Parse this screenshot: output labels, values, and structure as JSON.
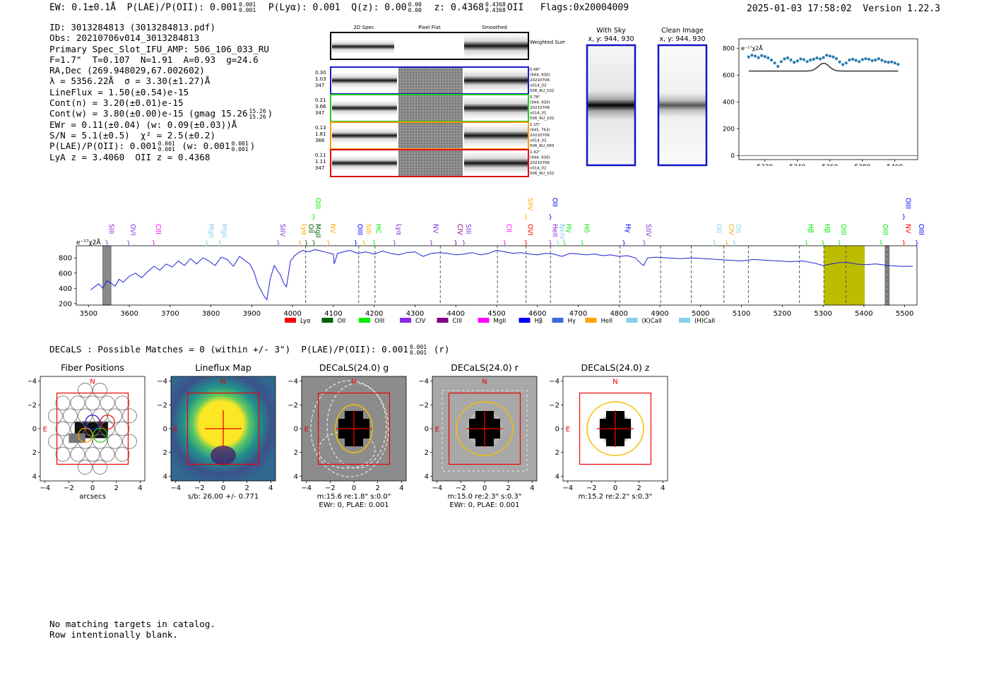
{
  "header": {
    "ew": "EW: 0.1±0.1Å",
    "plae_label": "P(LAE)/P(OII): 0.001",
    "plae_hi": "0.001",
    "plae_lo": "0.001",
    "plya": "P(Lyα): 0.001",
    "qz_label": "Q(z): 0.00",
    "qz_hi": "0.00",
    "qz_lo": "0.00",
    "z_label": "z: 0.4368",
    "z_hi": "0.4368",
    "z_lo": "0.4368",
    "z_line": "OII",
    "flags": "Flags:0x20004009",
    "datetime": "2025-01-03 17:58:02",
    "version": "Version 1.22.3"
  },
  "info": {
    "id": "ID: 3013284813 (3013284813.pdf)",
    "obs": "Obs: 20210706v014_3013284813",
    "slot": "Primary Spec_Slot_IFU_AMP: 506_106_033_RU",
    "fit": "F=1.7\"  T=0.107  N=1.91  A=0.93  g=24.6",
    "radec": "RA,Dec (269.948029,67.002602)",
    "lambda": "λ = 5356.22Å  σ = 3.30(±1.27)Å",
    "lineflux": "LineFlux = 1.50(±0.54)e-15",
    "contn": "Cont(n) = 3.20(±0.01)e-15",
    "contw": "Cont(w) = 3.80(±0.00)e-15 (gmag 15.26",
    "gmag_hi": "15.26",
    "gmag_lo": "15.26",
    "ewr": "EWr = 0.11(±0.04) (w: 0.09(±0.03))Å",
    "sn": "S/N = 5.1(±0.5)  χ² = 2.5(±0.2)",
    "plae": "P(LAE)/P(OII): 0.001",
    "plae_hi": "0.001",
    "plae_lo": "0.001",
    "plae_w": "(w: 0.001",
    "plae_w_hi": "0.001",
    "plae_w_lo": "0.001",
    "lya_z": "LyA z = 3.4060  OII z = 0.4368"
  },
  "cutouts": {
    "col_headers": [
      "2D Spec",
      "Pixel Flat",
      "Smoothed"
    ],
    "weighted_sum": "Weighted Sum",
    "fibers": [
      {
        "color": "#1a1acc",
        "l1": "0.30",
        "l2": "1.03",
        "l3": "347",
        "meta": [
          "0.68\"",
          "(944, 930)",
          "20210706",
          "v014_03",
          "506_RU_102"
        ]
      },
      {
        "color": "#22cc22",
        "l1": "0.21",
        "l2": "3.66",
        "l3": "347",
        "meta": [
          "0.78\"",
          "(944, 930)",
          "20210706",
          "v014_01",
          "506_RU_102"
        ]
      },
      {
        "color": "#ff9900",
        "l1": "0.13",
        "l2": "1.81",
        "l3": "366",
        "meta": [
          "1.15\"",
          "(945, 763)",
          "20210706",
          "v014_02",
          "506_RU_083"
        ]
      },
      {
        "color": "#e01010",
        "l1": "0.11",
        "l2": "1.11",
        "l3": "347",
        "meta": [
          "1.42\"",
          "(944, 930)",
          "20210706",
          "v014_02",
          "506_RU_102"
        ]
      }
    ]
  },
  "sky_panels": {
    "with_sky_title": "With Sky",
    "with_sky_xy": "x, y: 944, 930",
    "clean_title": "Clean Image",
    "clean_xy": "x, y: 944, 930"
  },
  "colors": {
    "spectrum": "#1f1fd6",
    "highlight": "#bdbd00",
    "zoom_points": "#2a7ab0"
  },
  "chart_data": [
    {
      "type": "scatter",
      "name": "zoom-spectrum",
      "scale_label": "e⁻¹⁷χ2Å",
      "xlim": [
        5304,
        5414
      ],
      "ylim": [
        -30,
        870
      ],
      "x_ticks": [
        5320,
        5340,
        5360,
        5380,
        5400
      ],
      "y_ticks": [
        0,
        200,
        400,
        600,
        800
      ],
      "x": [
        5310,
        5312,
        5314,
        5316,
        5318,
        5320,
        5322,
        5324,
        5326,
        5328,
        5330,
        5332,
        5334,
        5336,
        5338,
        5340,
        5342,
        5344,
        5346,
        5348,
        5350,
        5352,
        5354,
        5356,
        5358,
        5360,
        5362,
        5364,
        5366,
        5368,
        5370,
        5372,
        5374,
        5376,
        5378,
        5380,
        5382,
        5384,
        5386,
        5388,
        5390,
        5392,
        5394,
        5396,
        5398,
        5400,
        5402
      ],
      "y": [
        735,
        748,
        742,
        730,
        745,
        738,
        728,
        712,
        690,
        665,
        700,
        720,
        728,
        712,
        695,
        705,
        720,
        715,
        700,
        712,
        718,
        728,
        720,
        730,
        748,
        742,
        735,
        722,
        698,
        678,
        690,
        712,
        718,
        710,
        700,
        715,
        722,
        718,
        708,
        712,
        722,
        710,
        700,
        695,
        698,
        690,
        680
      ],
      "fit_baseline": 630,
      "fit_peak": 58,
      "fit_center": 5356.2,
      "fit_sigma": 3.3
    },
    {
      "type": "line",
      "name": "full-spectrum",
      "scale_label": "e⁻¹⁷χ2Å",
      "xlim": [
        3470,
        5530
      ],
      "ylim": [
        180,
        960
      ],
      "x_ticks": [
        3500,
        3600,
        3700,
        3800,
        3900,
        4000,
        4100,
        4200,
        4300,
        4400,
        4500,
        4600,
        4700,
        4800,
        4900,
        5000,
        5100,
        5200,
        5300,
        5400,
        5500
      ],
      "y_ticks": [
        200,
        400,
        600,
        800
      ],
      "x": [
        3505,
        3515,
        3525,
        3535,
        3545,
        3555,
        3565,
        3575,
        3585,
        3600,
        3615,
        3630,
        3645,
        3660,
        3675,
        3690,
        3705,
        3720,
        3735,
        3750,
        3765,
        3780,
        3795,
        3810,
        3825,
        3840,
        3855,
        3870,
        3885,
        3895,
        3905,
        3915,
        3922,
        3930,
        3937,
        3945,
        3955,
        3963,
        3970,
        3978,
        3985,
        3995,
        4005,
        4015,
        4025,
        4040,
        4055,
        4070,
        4085,
        4100,
        4102,
        4110,
        4125,
        4140,
        4160,
        4180,
        4200,
        4220,
        4240,
        4260,
        4280,
        4300,
        4320,
        4340,
        4360,
        4380,
        4400,
        4420,
        4440,
        4460,
        4480,
        4500,
        4520,
        4540,
        4560,
        4580,
        4600,
        4620,
        4640,
        4660,
        4680,
        4700,
        4720,
        4740,
        4760,
        4780,
        4800,
        4820,
        4840,
        4855,
        4860,
        4870,
        4890,
        4920,
        4950,
        4980,
        5010,
        5040,
        5070,
        5100,
        5130,
        5160,
        5190,
        5220,
        5250,
        5280,
        5300,
        5320,
        5340,
        5360,
        5380,
        5400,
        5430,
        5460,
        5490,
        5520
      ],
      "y": [
        380,
        420,
        460,
        400,
        500,
        470,
        430,
        520,
        480,
        560,
        600,
        540,
        620,
        690,
        640,
        720,
        680,
        760,
        700,
        790,
        720,
        800,
        760,
        700,
        810,
        780,
        690,
        820,
        760,
        720,
        620,
        450,
        380,
        300,
        250,
        520,
        700,
        630,
        580,
        470,
        420,
        760,
        830,
        870,
        900,
        880,
        910,
        890,
        870,
        850,
        720,
        860,
        880,
        900,
        860,
        880,
        850,
        890,
        860,
        840,
        870,
        880,
        820,
        860,
        870,
        860,
        840,
        850,
        870,
        840,
        860,
        900,
        880,
        860,
        870,
        850,
        840,
        860,
        850,
        820,
        860,
        850,
        840,
        850,
        830,
        840,
        820,
        830,
        800,
        720,
        700,
        800,
        810,
        800,
        790,
        800,
        790,
        780,
        770,
        760,
        780,
        770,
        760,
        750,
        760,
        730,
        700,
        720,
        740,
        740,
        720,
        710,
        720,
        700,
        690,
        690
      ],
      "highlight_band": [
        5302,
        5402
      ],
      "masked_bands": [
        [
          3535,
          3555
        ],
        [
          5452,
          5462
        ]
      ],
      "feature_lines": [
        4032,
        4162,
        4202,
        4362,
        4502,
        4572,
        4632,
        4802,
        4902,
        4977,
        5057,
        5117,
        5242,
        5302,
        5356,
        5457
      ],
      "legend": [
        "Lyα",
        "OII",
        "OIII",
        "CIV",
        "CIII",
        "MgII",
        "Hβ",
        "Hγ",
        "HeII",
        "(K)CaII",
        "(H)CaII"
      ],
      "legend_colors": [
        "#ff0000",
        "#006400",
        "#00ee00",
        "#8a2be2",
        "#800080",
        "#ff00ff",
        "#0000ff",
        "#4169e1",
        "#ffa500",
        "#87ceeb",
        "#87ceeb"
      ],
      "line_labels": [
        {
          "t": "SIII",
          "x": 3545,
          "c": "#8a2be2"
        },
        {
          "t": "OVI",
          "x": 3598,
          "c": "#8a2be2"
        },
        {
          "t": "CIII",
          "x": 3660,
          "c": "#ff00ff"
        },
        {
          "t": "MgII",
          "x": 3790,
          "c": "#87ceeb"
        },
        {
          "t": "MgII",
          "x": 3822,
          "c": "#87ceeb"
        },
        {
          "t": "SIIV",
          "x": 3965,
          "c": "#8a2be2"
        },
        {
          "t": "Lyα",
          "x": 4018,
          "c": "#ffa500"
        },
        {
          "t": "OII",
          "x": 4034,
          "c": "#006400"
        },
        {
          "t": "MgII",
          "x": 4052,
          "c": "#006400"
        },
        {
          "t": "OIII",
          "x": 4052,
          "c": "#00ee00",
          "hi": true
        },
        {
          "t": "NV",
          "x": 4088,
          "c": "#ffa500"
        },
        {
          "t": "OIII",
          "x": 4155,
          "c": "#0000ff"
        },
        {
          "t": "SIII",
          "x": 4175,
          "c": "#ffa500"
        },
        {
          "t": "HC",
          "x": 4200,
          "c": "#00ee00"
        },
        {
          "t": "Lyα",
          "x": 4250,
          "c": "#8a2be2"
        },
        {
          "t": "NV",
          "x": 4340,
          "c": "#8a2be2"
        },
        {
          "t": "CIV",
          "x": 4400,
          "c": "#800080"
        },
        {
          "t": "SIII",
          "x": 4420,
          "c": "#8a2be2"
        },
        {
          "t": "CII",
          "x": 4520,
          "c": "#ff00ff"
        },
        {
          "t": "SIIV",
          "x": 4572,
          "c": "#ffa500",
          "hi": true
        },
        {
          "t": "OVI",
          "x": 4572,
          "c": "#ff0000"
        },
        {
          "t": "OII",
          "x": 4632,
          "c": "#0000ff",
          "hi": true
        },
        {
          "t": "HeII",
          "x": 4632,
          "c": "#8a2be2"
        },
        {
          "t": "NeIV",
          "x": 4650,
          "c": "#87ceeb"
        },
        {
          "t": "Hγ",
          "x": 4666,
          "c": "#00ee00"
        },
        {
          "t": "Hδ",
          "x": 4710,
          "c": "#00ee00"
        },
        {
          "t": "Hγ",
          "x": 4812,
          "c": "#0000ff"
        },
        {
          "t": "SIIV",
          "x": 4862,
          "c": "#8a2be2"
        },
        {
          "t": "OII",
          "x": 5034,
          "c": "#87ceeb"
        },
        {
          "t": "CIV",
          "x": 5064,
          "c": "#ffa500"
        },
        {
          "t": "OII",
          "x": 5082,
          "c": "#87ceeb"
        },
        {
          "t": "Hβ",
          "x": 5259,
          "c": "#00ee00"
        },
        {
          "t": "Hβ",
          "x": 5300,
          "c": "#00ee00"
        },
        {
          "t": "OIII",
          "x": 5340,
          "c": "#00ee00"
        },
        {
          "t": "OIII",
          "x": 5442,
          "c": "#00ee00"
        },
        {
          "t": "NV",
          "x": 5498,
          "c": "#ff0000"
        },
        {
          "t": "OIII",
          "x": 5498,
          "c": "#0000ff",
          "hi": true
        },
        {
          "t": "OIII",
          "x": 5552,
          "c": "#0000ff"
        }
      ]
    }
  ],
  "decals": {
    "summary": "DECaLS : Possible Matches = 0 (within +/- 3\")  P(LAE)/P(OII): 0.001",
    "summary_hi": "0.001",
    "summary_lo": "0.001",
    "summary_band": "(r)",
    "ticks": [
      "−4",
      "−2",
      "0",
      "2",
      "4"
    ],
    "panels": [
      {
        "title": "Fiber Positions",
        "cap1": "arcsecs",
        "cap2": "",
        "north": "N",
        "east": "E"
      },
      {
        "title": "Lineflux Map",
        "cap1": "s/b: 26.00 +/- 0.771",
        "cap2": "",
        "north": "N",
        "east": "E"
      },
      {
        "title": "DECaLS(24.0) g",
        "cap1": "m:15.6  re:1.8\"  s:0.0\"",
        "cap2": "EWr: 0, PLAE: 0.001",
        "north": "N",
        "east": "E"
      },
      {
        "title": "DECaLS(24.0) r",
        "cap1": "m:15.0  re:2.3\"  s:0.3\"",
        "cap2": "EWr: 0, PLAE: 0.001",
        "north": "N",
        "east": "E"
      },
      {
        "title": "DECaLS(24.0) z",
        "cap1": "m:15.2  re:2.2\"  s:0.3\"",
        "cap2": "",
        "north": "N",
        "east": "E"
      }
    ]
  },
  "bottom": {
    "line1": "No matching targets in catalog.",
    "line2": "Row intentionally blank."
  }
}
